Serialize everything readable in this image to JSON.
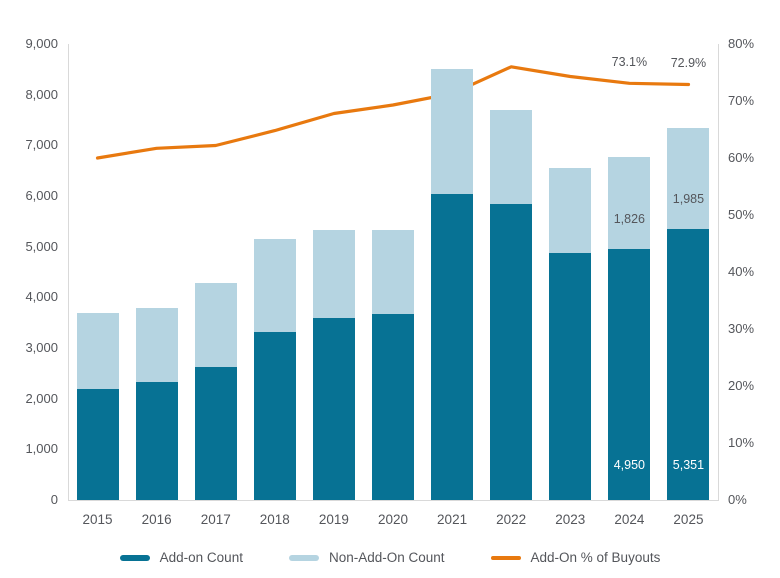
{
  "chart_data": {
    "type": "bar",
    "subtype": "stacked-bars-with-percentage-line",
    "title": "",
    "xlabel": "",
    "ylabel_left": "",
    "ylabel_right": "",
    "grid": false,
    "legend_position": "bottom",
    "categories": [
      "2015",
      "2016",
      "2017",
      "2018",
      "2019",
      "2020",
      "2021",
      "2022",
      "2023",
      "2024",
      "2025"
    ],
    "series": [
      {
        "name": "Add-on Count",
        "type": "bar",
        "stack": "buyouts",
        "axis": "left",
        "color": "#077294",
        "values": [
          2190,
          2335,
          2630,
          3310,
          3600,
          3670,
          6040,
          5845,
          4870,
          4950,
          5351
        ]
      },
      {
        "name": "Non-Add-On Count",
        "type": "bar",
        "stack": "buyouts",
        "axis": "left",
        "color": "#B5D4E1",
        "values": [
          1495,
          1450,
          1645,
          1840,
          1730,
          1660,
          2470,
          1855,
          1680,
          1826,
          1985
        ]
      },
      {
        "name": "Add-On % of Buyouts",
        "type": "line",
        "axis": "right",
        "color": "#E8790F",
        "values": [
          60.0,
          61.7,
          62.2,
          64.8,
          67.8,
          69.3,
          71.3,
          76.0,
          74.3,
          73.1,
          72.9
        ]
      }
    ],
    "left_axis": {
      "min": 0,
      "max": 9000,
      "step": 1000,
      "labels": [
        "0",
        "1,000",
        "2,000",
        "3,000",
        "4,000",
        "5,000",
        "6,000",
        "7,000",
        "8,000",
        "9,000"
      ]
    },
    "right_axis": {
      "min": 0,
      "max": 80,
      "step": 10,
      "labels": [
        "0%",
        "10%",
        "20%",
        "30%",
        "40%",
        "50%",
        "60%",
        "70%",
        "80%"
      ]
    },
    "bar_value_labels": [
      {
        "category": "2024",
        "series": "Add-on Count",
        "text": "4,950",
        "text_color": "#FFFFFF"
      },
      {
        "category": "2025",
        "series": "Add-on Count",
        "text": "5,351",
        "text_color": "#FFFFFF"
      },
      {
        "category": "2024",
        "series": "Non-Add-On Count",
        "text": "1,826",
        "text_color": "#54565B"
      },
      {
        "category": "2025",
        "series": "Non-Add-On Count",
        "text": "1,985",
        "text_color": "#54565B"
      }
    ],
    "line_point_labels": [
      {
        "category": "2024",
        "text": "73.1%"
      },
      {
        "category": "2025",
        "text": "72.9%"
      }
    ]
  },
  "legend": {
    "items": [
      {
        "label": "Add-on Count",
        "color": "#077294",
        "shape": "thick-dash"
      },
      {
        "label": "Non-Add-On Count",
        "color": "#B5D4E1",
        "shape": "thick-dash"
      },
      {
        "label": "Add-On % of Buyouts",
        "color": "#E8790F",
        "shape": "line-dash"
      }
    ]
  },
  "colors": {
    "axis_text": "#54565B",
    "axis_line": "#D9D9D9",
    "background": "#FFFFFF"
  }
}
